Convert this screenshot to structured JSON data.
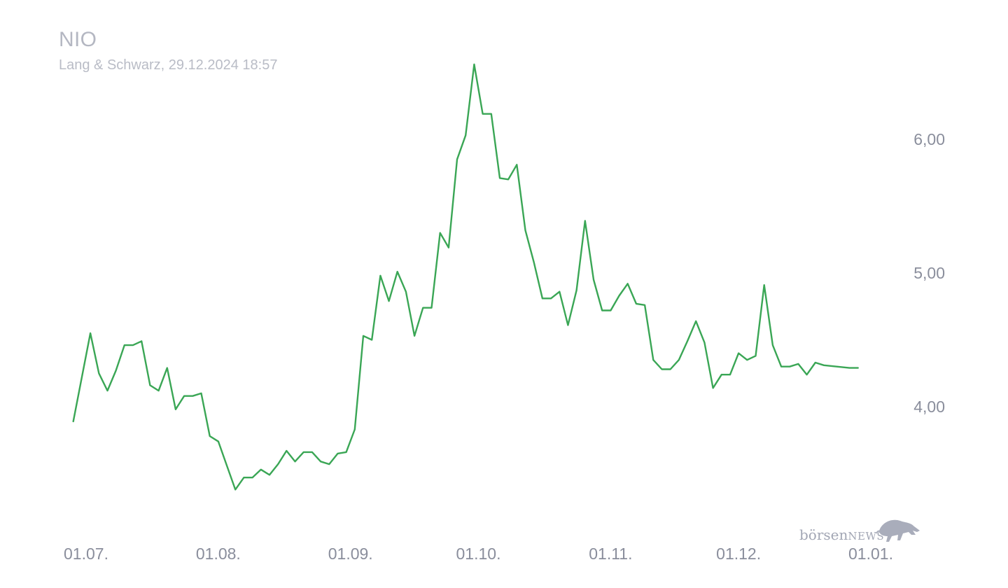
{
  "header": {
    "title": "NIO",
    "subtitle": "Lang & Schwarz, 29.12.2024 18:57"
  },
  "logo": {
    "brand_prefix": "börsen",
    "brand_suffix": "NEWS",
    "icon": "bull-icon"
  },
  "colors": {
    "line": "#3aa655",
    "text": "#8a8e9c",
    "title": "#b4b7c2"
  },
  "chart_data": {
    "type": "line",
    "title": "NIO",
    "subtitle": "Lang & Schwarz, 29.12.2024 18:57",
    "xlabel": "",
    "ylabel": "",
    "x_range": [
      "2024-07-01",
      "2025-01-01"
    ],
    "ylim": [
      3.0,
      6.6
    ],
    "y_ticks": [
      4.0,
      5.0,
      6.0
    ],
    "y_tick_labels": [
      "4,00",
      "5,00",
      "6,00"
    ],
    "x_ticks": [
      "2024-07-01",
      "2024-08-01",
      "2024-09-01",
      "2024-10-01",
      "2024-11-01",
      "2024-12-01",
      "2025-01-01"
    ],
    "x_tick_labels": [
      "01.07.",
      "01.08.",
      "01.09.",
      "01.10.",
      "01.11.",
      "01.12.",
      "01.01."
    ],
    "grid": false,
    "legend": "none",
    "series": [
      {
        "color": "#3aa655",
        "points": [
          [
            "2024-06-28",
            3.89
          ],
          [
            "2024-07-02",
            4.55
          ],
          [
            "2024-07-04",
            4.25
          ],
          [
            "2024-07-06",
            4.12
          ],
          [
            "2024-07-08",
            4.27
          ],
          [
            "2024-07-10",
            4.46
          ],
          [
            "2024-07-12",
            4.46
          ],
          [
            "2024-07-14",
            4.49
          ],
          [
            "2024-07-16",
            4.16
          ],
          [
            "2024-07-18",
            4.12
          ],
          [
            "2024-07-20",
            4.29
          ],
          [
            "2024-07-22",
            3.98
          ],
          [
            "2024-07-24",
            4.08
          ],
          [
            "2024-07-26",
            4.08
          ],
          [
            "2024-07-28",
            4.1
          ],
          [
            "2024-07-30",
            3.78
          ],
          [
            "2024-08-01",
            3.74
          ],
          [
            "2024-08-03",
            3.56
          ],
          [
            "2024-08-05",
            3.38
          ],
          [
            "2024-08-07",
            3.47
          ],
          [
            "2024-08-09",
            3.47
          ],
          [
            "2024-08-11",
            3.53
          ],
          [
            "2024-08-13",
            3.49
          ],
          [
            "2024-08-15",
            3.57
          ],
          [
            "2024-08-17",
            3.67
          ],
          [
            "2024-08-19",
            3.59
          ],
          [
            "2024-08-21",
            3.66
          ],
          [
            "2024-08-23",
            3.66
          ],
          [
            "2024-08-25",
            3.59
          ],
          [
            "2024-08-27",
            3.57
          ],
          [
            "2024-08-29",
            3.65
          ],
          [
            "2024-08-31",
            3.66
          ],
          [
            "2024-09-02",
            3.83
          ],
          [
            "2024-09-04",
            4.53
          ],
          [
            "2024-09-06",
            4.5
          ],
          [
            "2024-09-08",
            4.98
          ],
          [
            "2024-09-10",
            4.79
          ],
          [
            "2024-09-12",
            5.01
          ],
          [
            "2024-09-14",
            4.86
          ],
          [
            "2024-09-16",
            4.53
          ],
          [
            "2024-09-18",
            4.74
          ],
          [
            "2024-09-20",
            4.74
          ],
          [
            "2024-09-22",
            5.3
          ],
          [
            "2024-09-24",
            5.19
          ],
          [
            "2024-09-26",
            5.85
          ],
          [
            "2024-09-28",
            6.03
          ],
          [
            "2024-09-30",
            6.56
          ],
          [
            "2024-10-02",
            6.19
          ],
          [
            "2024-10-04",
            6.19
          ],
          [
            "2024-10-06",
            5.71
          ],
          [
            "2024-10-08",
            5.7
          ],
          [
            "2024-10-10",
            5.81
          ],
          [
            "2024-10-12",
            5.32
          ],
          [
            "2024-10-14",
            5.08
          ],
          [
            "2024-10-16",
            4.81
          ],
          [
            "2024-10-18",
            4.81
          ],
          [
            "2024-10-20",
            4.86
          ],
          [
            "2024-10-22",
            4.61
          ],
          [
            "2024-10-24",
            4.87
          ],
          [
            "2024-10-26",
            5.39
          ],
          [
            "2024-10-28",
            4.95
          ],
          [
            "2024-10-30",
            4.72
          ],
          [
            "2024-11-01",
            4.72
          ],
          [
            "2024-11-03",
            4.83
          ],
          [
            "2024-11-05",
            4.92
          ],
          [
            "2024-11-07",
            4.77
          ],
          [
            "2024-11-09",
            4.76
          ],
          [
            "2024-11-11",
            4.35
          ],
          [
            "2024-11-13",
            4.28
          ],
          [
            "2024-11-15",
            4.28
          ],
          [
            "2024-11-17",
            4.35
          ],
          [
            "2024-11-19",
            4.49
          ],
          [
            "2024-11-21",
            4.64
          ],
          [
            "2024-11-23",
            4.48
          ],
          [
            "2024-11-25",
            4.14
          ],
          [
            "2024-11-27",
            4.24
          ],
          [
            "2024-11-29",
            4.24
          ],
          [
            "2024-12-01",
            4.4
          ],
          [
            "2024-12-03",
            4.35
          ],
          [
            "2024-12-05",
            4.38
          ],
          [
            "2024-12-07",
            4.91
          ],
          [
            "2024-12-09",
            4.46
          ],
          [
            "2024-12-11",
            4.3
          ],
          [
            "2024-12-13",
            4.3
          ],
          [
            "2024-12-15",
            4.32
          ],
          [
            "2024-12-17",
            4.24
          ],
          [
            "2024-12-19",
            4.33
          ],
          [
            "2024-12-21",
            4.31
          ],
          [
            "2024-12-24",
            4.3
          ],
          [
            "2024-12-27",
            4.29
          ],
          [
            "2024-12-29",
            4.29
          ]
        ]
      }
    ]
  }
}
